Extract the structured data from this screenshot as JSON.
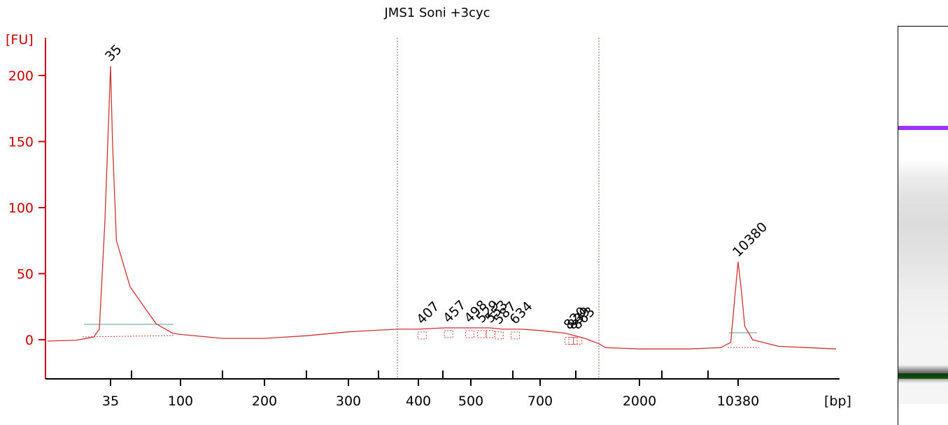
{
  "chart_data": {
    "type": "line",
    "title": "JMS1 Soni +3cyc",
    "ylabel": "[FU]",
    "xlabel": "[bp]",
    "ylim": [
      -30,
      230
    ],
    "y_ticks": [
      0,
      50,
      100,
      150,
      200
    ],
    "x_ticks": [
      "35",
      "100",
      "200",
      "300",
      "400",
      "500",
      "700",
      "2000",
      "10380"
    ],
    "x_scale": "nonlinear (electrophoresis size ladder)",
    "grid": false,
    "vertical_markers": [
      "~350 bp",
      "~1000 bp"
    ],
    "peaks": [
      {
        "label": "35",
        "value": 207,
        "color": "#228B22",
        "type": "lower marker"
      },
      {
        "label": "407",
        "value": 8
      },
      {
        "label": "457",
        "value": 9
      },
      {
        "label": "498",
        "value": 9
      },
      {
        "label": "529",
        "value": 9
      },
      {
        "label": "553",
        "value": 9
      },
      {
        "label": "587",
        "value": 8
      },
      {
        "label": "634",
        "value": 8
      },
      {
        "label": "820",
        "value": 4
      },
      {
        "label": "839",
        "value": 4
      },
      {
        "label": "863",
        "value": 4
      },
      {
        "label": "10380",
        "value": 59,
        "color": "#9933ff",
        "type": "upper marker"
      }
    ],
    "series": [
      {
        "name": "",
        "points": [
          [
            "20",
            -1
          ],
          [
            "28",
            -0.5
          ],
          [
            "32",
            2
          ],
          [
            "33",
            8
          ],
          [
            "34",
            90
          ],
          [
            "35",
            207
          ],
          [
            "36",
            150
          ],
          [
            "38",
            75
          ],
          [
            "45",
            40
          ],
          [
            "55",
            25
          ],
          [
            "70",
            12
          ],
          [
            "90",
            5
          ],
          [
            "100",
            4
          ],
          [
            "150",
            1
          ],
          [
            "200",
            1
          ],
          [
            "250",
            3
          ],
          [
            "300",
            6
          ],
          [
            "350",
            8
          ],
          [
            "400",
            8
          ],
          [
            "450",
            9
          ],
          [
            "500",
            9
          ],
          [
            "550",
            9
          ],
          [
            "600",
            8
          ],
          [
            "650",
            8
          ],
          [
            "700",
            7
          ],
          [
            "800",
            5
          ],
          [
            "900",
            1
          ],
          [
            "1000",
            -3
          ],
          [
            "1200",
            -6
          ],
          [
            "2000",
            -7
          ],
          [
            "5000",
            -7
          ],
          [
            "9000",
            -6
          ],
          [
            "9800",
            -2
          ],
          [
            "10100",
            30
          ],
          [
            "10380",
            59
          ],
          [
            "10600",
            40
          ],
          [
            "10900",
            10
          ],
          [
            "11500",
            0
          ],
          [
            "13000",
            -5
          ],
          [
            "16000",
            -7
          ]
        ]
      }
    ]
  },
  "gel": {
    "bands": [
      {
        "label": "upper marker band",
        "color": "#9933ff"
      },
      {
        "label": "lower marker band",
        "color": "#228B22"
      }
    ]
  }
}
